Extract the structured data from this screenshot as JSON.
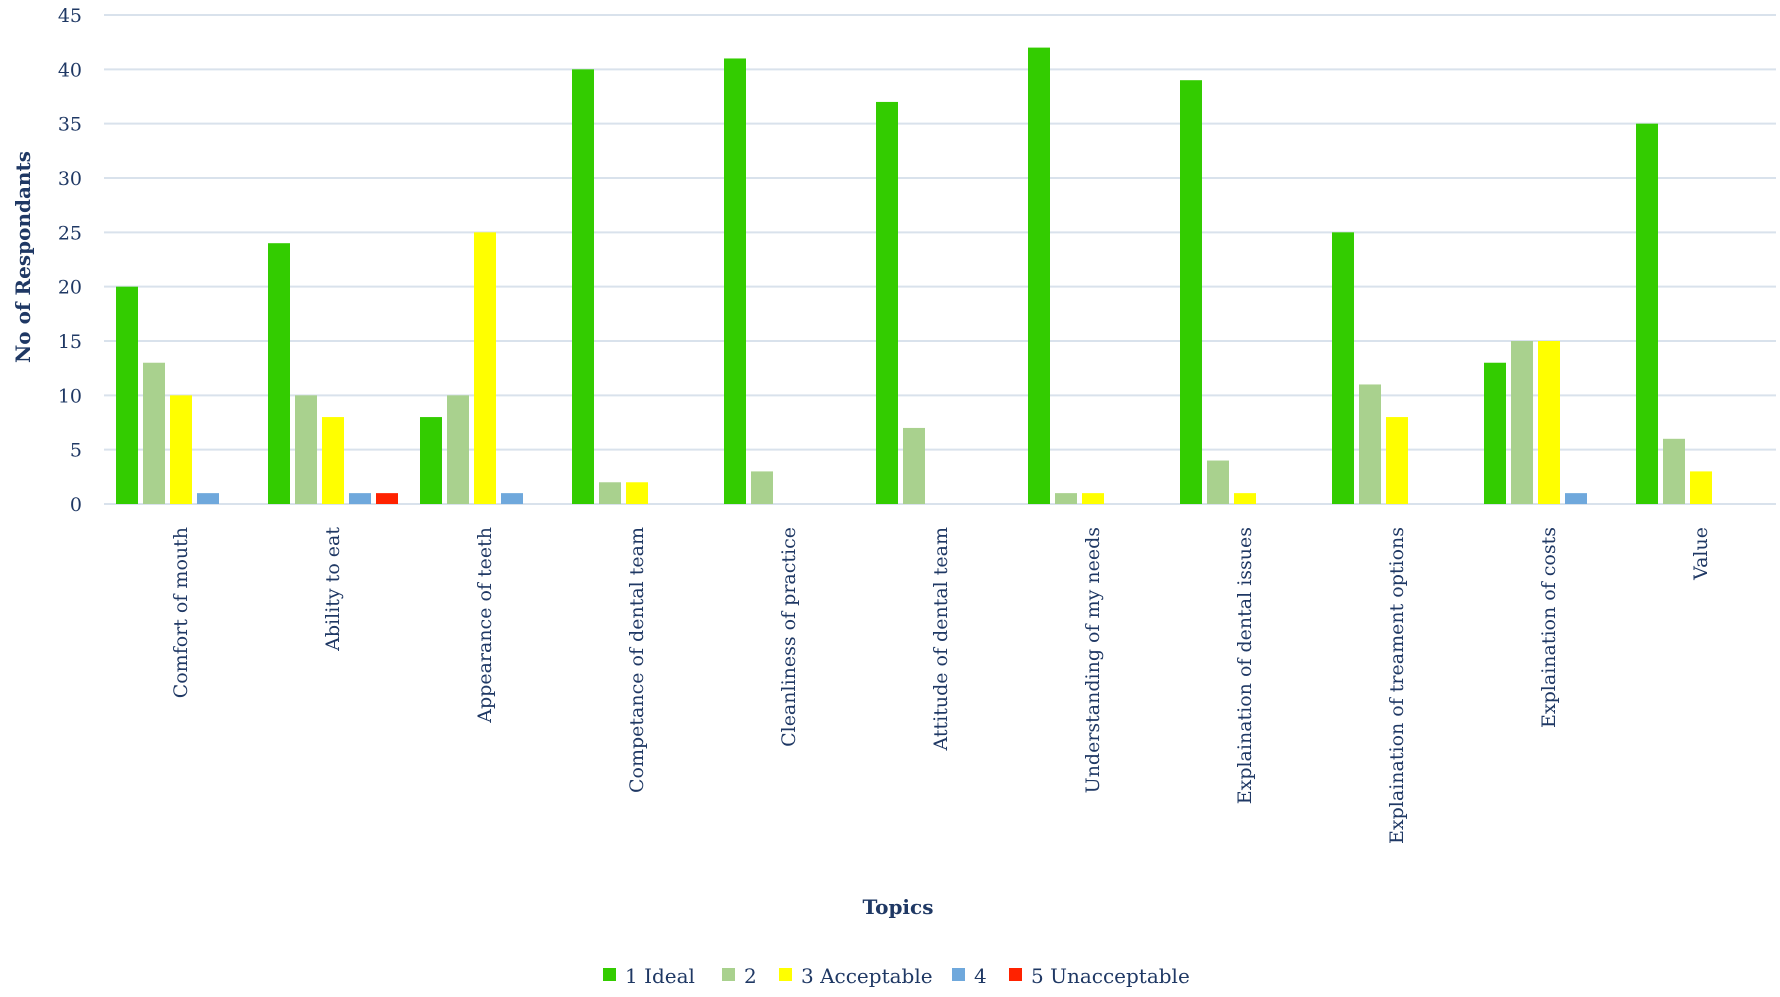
{
  "chart_data": {
    "type": "bar",
    "title": "",
    "xlabel": "Topics",
    "ylabel": "No of Respondants",
    "ylim": [
      0,
      45
    ],
    "yticks": [
      0,
      5,
      10,
      15,
      20,
      25,
      30,
      35,
      40,
      45
    ],
    "grid": true,
    "legend_position": "bottom",
    "categories": [
      "Comfort of mouth",
      "Ability to eat",
      "Appearance of teeth",
      "Competance of dental team",
      "Cleanliness of practice",
      "Attitude of dental team",
      "Understanding of my needs",
      "Explaination of dental issues",
      "Explaination of  treament options",
      "Explaination of costs",
      "Value"
    ],
    "series": [
      {
        "name": "1 Ideal",
        "color": "#33cc00",
        "values": [
          20,
          24,
          8,
          40,
          41,
          37,
          42,
          39,
          25,
          13,
          35
        ]
      },
      {
        "name": "2",
        "color": "#a9d18e",
        "values": [
          13,
          10,
          10,
          2,
          3,
          7,
          1,
          4,
          11,
          15,
          6
        ]
      },
      {
        "name": "3 Acceptable",
        "color": "#ffff00",
        "values": [
          10,
          8,
          25,
          2,
          0,
          0,
          1,
          1,
          8,
          15,
          3
        ]
      },
      {
        "name": "4",
        "color": "#6fa8dc",
        "values": [
          1,
          1,
          1,
          0,
          0,
          0,
          0,
          0,
          0,
          1,
          0
        ]
      },
      {
        "name": "5 Unacceptable",
        "color": "#ff2200",
        "values": [
          0,
          1,
          0,
          0,
          0,
          0,
          0,
          0,
          0,
          0,
          0
        ]
      }
    ],
    "colors": {
      "grid": "#d9e2ec",
      "text": "#1f3864"
    }
  }
}
